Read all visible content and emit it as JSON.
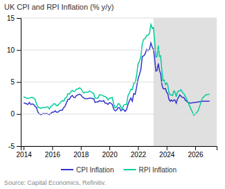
{
  "chart_data": {
    "type": "line",
    "title": "UK CPI and RPI Inflation (% y/y)",
    "source": "Source: Capital Economics, Refinitiv.",
    "x": [
      2014.0,
      2014.1,
      2014.2,
      2014.3,
      2014.4,
      2014.5,
      2014.6,
      2014.7,
      2014.8,
      2014.9,
      2015.0,
      2015.1,
      2015.2,
      2015.3,
      2015.4,
      2015.5,
      2015.6,
      2015.7,
      2015.8,
      2015.9,
      2016.0,
      2016.1,
      2016.2,
      2016.3,
      2016.4,
      2016.5,
      2016.6,
      2016.7,
      2016.8,
      2016.9,
      2017.0,
      2017.1,
      2017.2,
      2017.3,
      2017.4,
      2017.5,
      2017.6,
      2017.7,
      2017.8,
      2017.9,
      2018.0,
      2018.1,
      2018.2,
      2018.3,
      2018.4,
      2018.5,
      2018.6,
      2018.7,
      2018.8,
      2018.9,
      2019.0,
      2019.1,
      2019.2,
      2019.3,
      2019.4,
      2019.5,
      2019.6,
      2019.7,
      2019.8,
      2019.9,
      2020.0,
      2020.1,
      2020.2,
      2020.3,
      2020.4,
      2020.5,
      2020.6,
      2020.7,
      2020.8,
      2020.9,
      2021.0,
      2021.1,
      2021.2,
      2021.3,
      2021.4,
      2021.5,
      2021.6,
      2021.7,
      2021.8,
      2021.9,
      2022.0,
      2022.1,
      2022.2,
      2022.3,
      2022.4,
      2022.5,
      2022.6,
      2022.7,
      2022.8,
      2022.9,
      2023.0,
      2023.08,
      2023.16,
      2023.25,
      2023.33,
      2023.42,
      2023.5,
      2023.58,
      2023.67,
      2023.75,
      2023.83,
      2023.92,
      2024.0,
      2024.08,
      2024.16,
      2024.25,
      2024.33,
      2024.42,
      2024.5,
      2024.58,
      2024.67,
      2024.75,
      2024.83,
      2024.92,
      2025.0,
      2025.1,
      2025.2,
      2025.3,
      2025.5,
      2025.7,
      2025.9,
      2026.0,
      2026.2,
      2026.5,
      2026.75,
      2027.0
    ],
    "series": [
      {
        "name": "CPI Inflation",
        "color": "#3333cc",
        "values": [
          1.7,
          1.7,
          1.6,
          1.5,
          1.8,
          1.5,
          1.6,
          1.5,
          1.2,
          1.0,
          0.3,
          0.0,
          -0.1,
          0.0,
          0.1,
          0.0,
          0.1,
          0.0,
          -0.1,
          0.1,
          0.3,
          0.3,
          0.5,
          0.3,
          0.3,
          0.5,
          0.6,
          0.6,
          1.0,
          1.2,
          1.8,
          2.3,
          2.3,
          2.7,
          2.9,
          2.6,
          2.6,
          2.9,
          3.0,
          3.1,
          3.0,
          2.7,
          2.5,
          2.4,
          2.4,
          2.4,
          2.5,
          2.5,
          2.4,
          2.4,
          1.8,
          1.9,
          1.9,
          2.1,
          2.0,
          2.0,
          2.1,
          1.7,
          1.7,
          1.5,
          1.8,
          1.7,
          1.5,
          0.8,
          0.5,
          0.6,
          1.0,
          1.0,
          0.5,
          0.7,
          0.7,
          0.4,
          0.7,
          1.5,
          2.1,
          2.5,
          2.0,
          3.2,
          3.1,
          4.2,
          5.5,
          6.2,
          7.0,
          9.0,
          9.1,
          9.4,
          10.1,
          9.9,
          10.1,
          11.1,
          10.4,
          10.1,
          8.7,
          6.7,
          6.8,
          7.9,
          6.8,
          6.3,
          4.6,
          4.0,
          3.9,
          4.0,
          3.4,
          3.2,
          2.3,
          2.0,
          2.2,
          2.0,
          2.2,
          2.2,
          1.7,
          2.3,
          2.6,
          3.0,
          2.8,
          2.6,
          2.6,
          2.2,
          1.8,
          1.7,
          1.8,
          1.8,
          1.9,
          2.0,
          2.0,
          2.0
        ]
      },
      {
        "name": "RPI Inflation",
        "color": "#00cc99",
        "values": [
          2.7,
          2.6,
          2.5,
          2.4,
          2.5,
          2.6,
          2.6,
          2.5,
          2.3,
          1.6,
          1.1,
          1.0,
          0.9,
          1.0,
          1.0,
          1.0,
          1.1,
          1.1,
          0.8,
          1.2,
          1.3,
          1.6,
          1.6,
          1.3,
          1.4,
          1.6,
          1.9,
          2.1,
          2.0,
          2.5,
          2.6,
          3.2,
          3.1,
          3.5,
          3.7,
          3.5,
          3.6,
          3.9,
          3.9,
          4.1,
          4.0,
          3.6,
          3.3,
          3.4,
          3.4,
          3.4,
          3.6,
          3.5,
          3.3,
          3.2,
          2.5,
          2.5,
          2.5,
          3.0,
          3.0,
          2.9,
          2.8,
          2.7,
          2.6,
          2.2,
          2.5,
          2.5,
          2.6,
          1.5,
          1.0,
          1.1,
          1.6,
          1.6,
          1.1,
          0.8,
          1.4,
          1.5,
          1.5,
          2.9,
          3.3,
          3.9,
          3.8,
          4.8,
          4.9,
          6.0,
          7.8,
          8.2,
          9.0,
          11.0,
          11.7,
          11.8,
          12.3,
          12.3,
          12.6,
          14.0,
          13.4,
          13.5,
          11.4,
          8.9,
          9.0,
          10.7,
          9.0,
          9.1,
          6.7,
          5.2,
          5.3,
          4.6,
          4.9,
          4.5,
          3.4,
          3.0,
          3.0,
          2.9,
          3.6,
          3.5,
          2.7,
          3.4,
          3.6,
          3.6,
          3.8,
          3.4,
          3.2,
          2.8,
          1.8,
          0.8,
          -0.2,
          0.0,
          0.5,
          2.5,
          3.0,
          3.1
        ]
      }
    ],
    "shading": {
      "range": [
        2023.08,
        2027.5
      ],
      "color": "#e0e0e0"
    },
    "xlim": [
      2013.8,
      2027.5
    ],
    "xticks": [
      2014,
      2016,
      2018,
      2020,
      2022,
      2024,
      2026
    ],
    "ylim": [
      -5,
      15
    ],
    "yticks": [
      -5,
      0,
      5,
      10,
      15
    ],
    "grid": true
  }
}
